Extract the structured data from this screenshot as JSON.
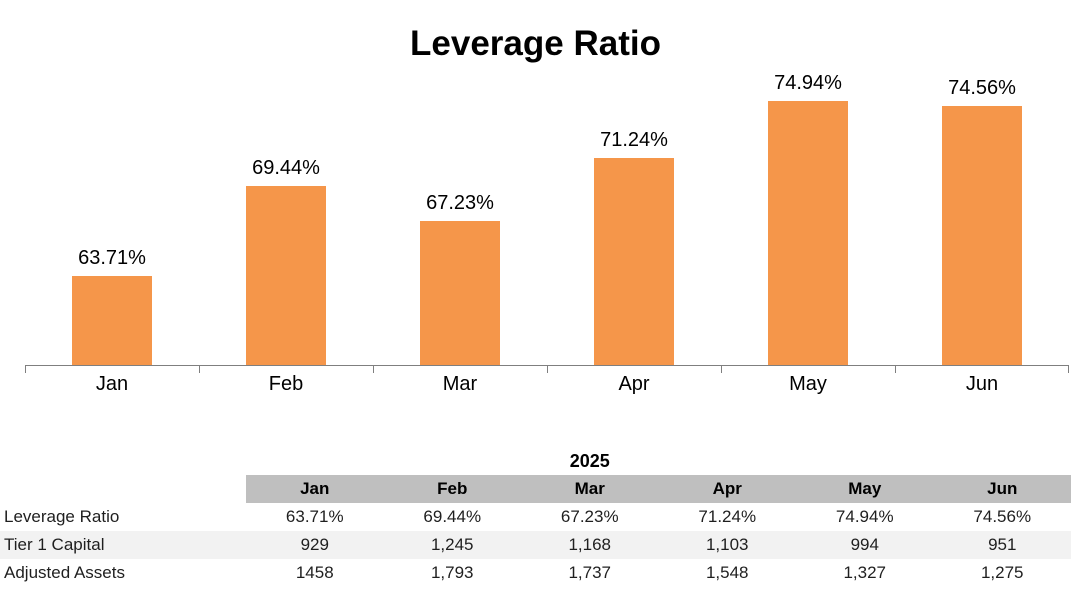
{
  "chart_data": {
    "type": "bar",
    "title": "Leverage Ratio",
    "categories": [
      "Jan",
      "Feb",
      "Mar",
      "Apr",
      "May",
      "Jun"
    ],
    "values": [
      63.71,
      69.44,
      67.23,
      71.24,
      74.94,
      74.56
    ],
    "value_labels": [
      "63.71%",
      "69.44%",
      "67.23%",
      "71.24%",
      "74.94%",
      "74.56%"
    ],
    "xlabel": "",
    "ylabel": "",
    "ylim": [
      58,
      76
    ],
    "grid": false,
    "legend": false,
    "bar_color": "#F5964A",
    "axis_color": "#7F7F7F",
    "label_color": "#000000"
  },
  "table": {
    "year": "2025",
    "year_over_column": "Mar",
    "columns": [
      "Jan",
      "Feb",
      "Mar",
      "Apr",
      "May",
      "Jun"
    ],
    "rows": [
      {
        "label": "Leverage Ratio",
        "values": [
          "63.71%",
          "69.44%",
          "67.23%",
          "71.24%",
          "74.94%",
          "74.56%"
        ]
      },
      {
        "label": "Tier 1 Capital",
        "values": [
          "929",
          "1,245",
          "1,168",
          "1,103",
          "994",
          "951"
        ]
      },
      {
        "label": "Adjusted Assets",
        "values": [
          "1458",
          "1,793",
          "1,737",
          "1,548",
          "1,327",
          "1,275"
        ]
      }
    ],
    "header_bg": "#BFBFBF",
    "stripe_bg": "#F2F2F2",
    "striped_row_index": 1
  }
}
